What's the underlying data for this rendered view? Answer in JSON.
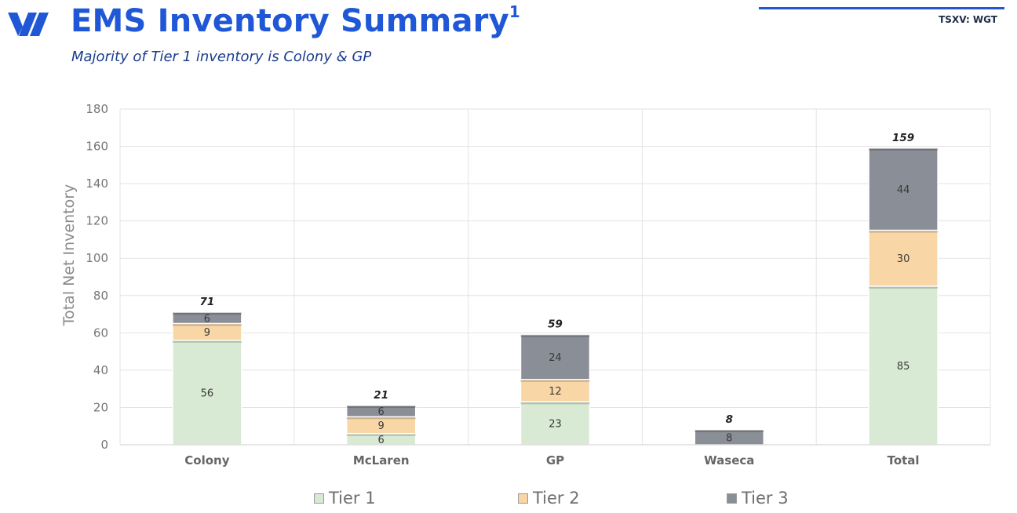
{
  "header": {
    "title": "EMS Inventory Summary",
    "title_superscript": "1",
    "subtitle": "Majority of Tier 1 inventory is Colony & GP",
    "ticker": "TSXV: WGT"
  },
  "colors": {
    "brand": "#1f57d6",
    "tier1": "#d8ead3",
    "tier2": "#f9d6a6",
    "tier3": "#8a8e97"
  },
  "chart_data": {
    "type": "bar",
    "stacked": true,
    "categories": [
      "Colony",
      "McLaren",
      "GP",
      "Waseca",
      "Total"
    ],
    "series": [
      {
        "name": "Tier 1",
        "values": [
          56,
          6,
          23,
          null,
          85
        ],
        "labels": [
          "56",
          "6",
          "23",
          "",
          "85"
        ]
      },
      {
        "name": "Tier 2",
        "values": [
          9,
          9,
          12,
          null,
          30
        ],
        "labels": [
          "9",
          "9",
          "12",
          "",
          "30"
        ]
      },
      {
        "name": "Tier 3",
        "values": [
          6,
          6,
          24,
          8,
          44
        ],
        "labels": [
          "6",
          "6",
          "24",
          "8",
          "44"
        ]
      }
    ],
    "totals": [
      71,
      21,
      59,
      8,
      159
    ],
    "total_labels": [
      "71",
      "21",
      "59",
      "8",
      "159"
    ],
    "title": "",
    "xlabel": "",
    "ylabel": "Total Net Inventory",
    "ylim": [
      0,
      180
    ],
    "yticks": [
      0,
      20,
      40,
      60,
      80,
      100,
      120,
      140,
      160,
      180
    ],
    "ytick_labels": [
      "0",
      "20",
      "40",
      "60",
      "80",
      "100",
      "120",
      "140",
      "160",
      "180"
    ],
    "grid": true,
    "legend_position": "bottom"
  }
}
